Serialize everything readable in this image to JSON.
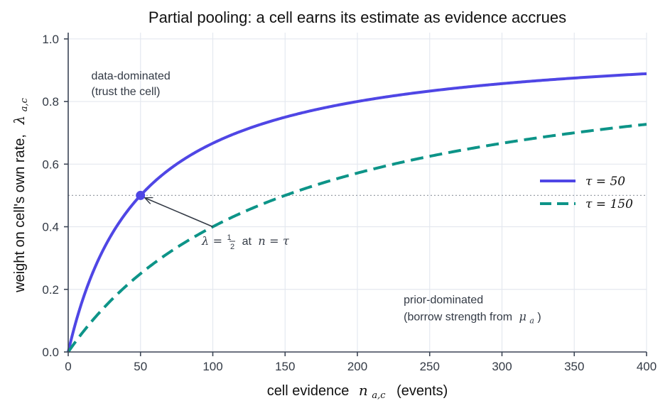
{
  "chart_data": {
    "type": "line",
    "title": "Partial pooling: a cell earns its estimate as evidence accrues",
    "xlabel": "cell evidence  n_{a,c}  (events)",
    "xlabel_parts": {
      "prefix": "cell evidence",
      "symbol": "n",
      "subscript": "a,c",
      "suffix": "(events)"
    },
    "ylabel": "weight on cell's own rate,  λ_{a,c}",
    "ylabel_parts": {
      "prefix": "weight on cell's own rate,",
      "symbol": "λ",
      "subscript": "a,c"
    },
    "xlim": [
      0,
      400
    ],
    "ylim": [
      0,
      1.02
    ],
    "x_ticks": [
      0,
      50,
      100,
      150,
      200,
      250,
      300,
      350,
      400
    ],
    "x_tick_labels": [
      "0",
      "50",
      "100",
      "150",
      "200",
      "250",
      "300",
      "350",
      "400"
    ],
    "y_ticks": [
      0,
      0.2,
      0.4,
      0.6,
      0.8,
      1.0
    ],
    "y_tick_labels": [
      "0.0",
      "0.2",
      "0.4",
      "0.6",
      "0.8",
      "1.0"
    ],
    "grid": true,
    "legend_position": "right",
    "reference_line": {
      "y": 0.5,
      "style": "dotted",
      "color": "#9aa0a8"
    },
    "series": [
      {
        "name": "τ = 50",
        "tau": 50,
        "color": "#4f46e5",
        "style": "solid",
        "x": [
          0,
          5,
          10,
          20,
          30,
          40,
          50,
          75,
          100,
          150,
          200,
          250,
          300,
          350,
          400
        ],
        "y": [
          0,
          0.091,
          0.167,
          0.286,
          0.375,
          0.444,
          0.5,
          0.6,
          0.667,
          0.75,
          0.8,
          0.833,
          0.857,
          0.875,
          0.889
        ]
      },
      {
        "name": "τ = 150",
        "tau": 150,
        "color": "#0d9488",
        "style": "dashed",
        "x": [
          0,
          10,
          25,
          50,
          75,
          100,
          150,
          200,
          250,
          300,
          350,
          400
        ],
        "y": [
          0,
          0.0625,
          0.143,
          0.25,
          0.333,
          0.4,
          0.5,
          0.571,
          0.625,
          0.667,
          0.7,
          0.727
        ]
      }
    ],
    "marker": {
      "x": 50,
      "y": 0.5,
      "color": "#4f46e5"
    },
    "annotations": {
      "arrow_label_parts": {
        "lambda": "λ",
        "eq": "=",
        "num": "1",
        "den": "2",
        "at": "at",
        "n": "n",
        "eq2": "=",
        "tau": "τ"
      },
      "arrow_label": "λ = 1/2 at n = τ",
      "arrow_from": {
        "x": 100,
        "y": 0.4
      },
      "arrow_to": {
        "x": 51,
        "y": 0.497
      },
      "data_dominated": [
        "data-dominated",
        "(trust the cell)"
      ],
      "data_dominated_anchor": {
        "x": 16,
        "y": 0.87
      },
      "prior_dominated_line1": "prior-dominated",
      "prior_dominated_line2_prefix": "(borrow strength from",
      "prior_dominated_symbol": "μ",
      "prior_dominated_subscript": "a",
      "prior_dominated_close": ")",
      "prior_dominated_anchor": {
        "x": 232,
        "y": 0.155
      }
    }
  }
}
